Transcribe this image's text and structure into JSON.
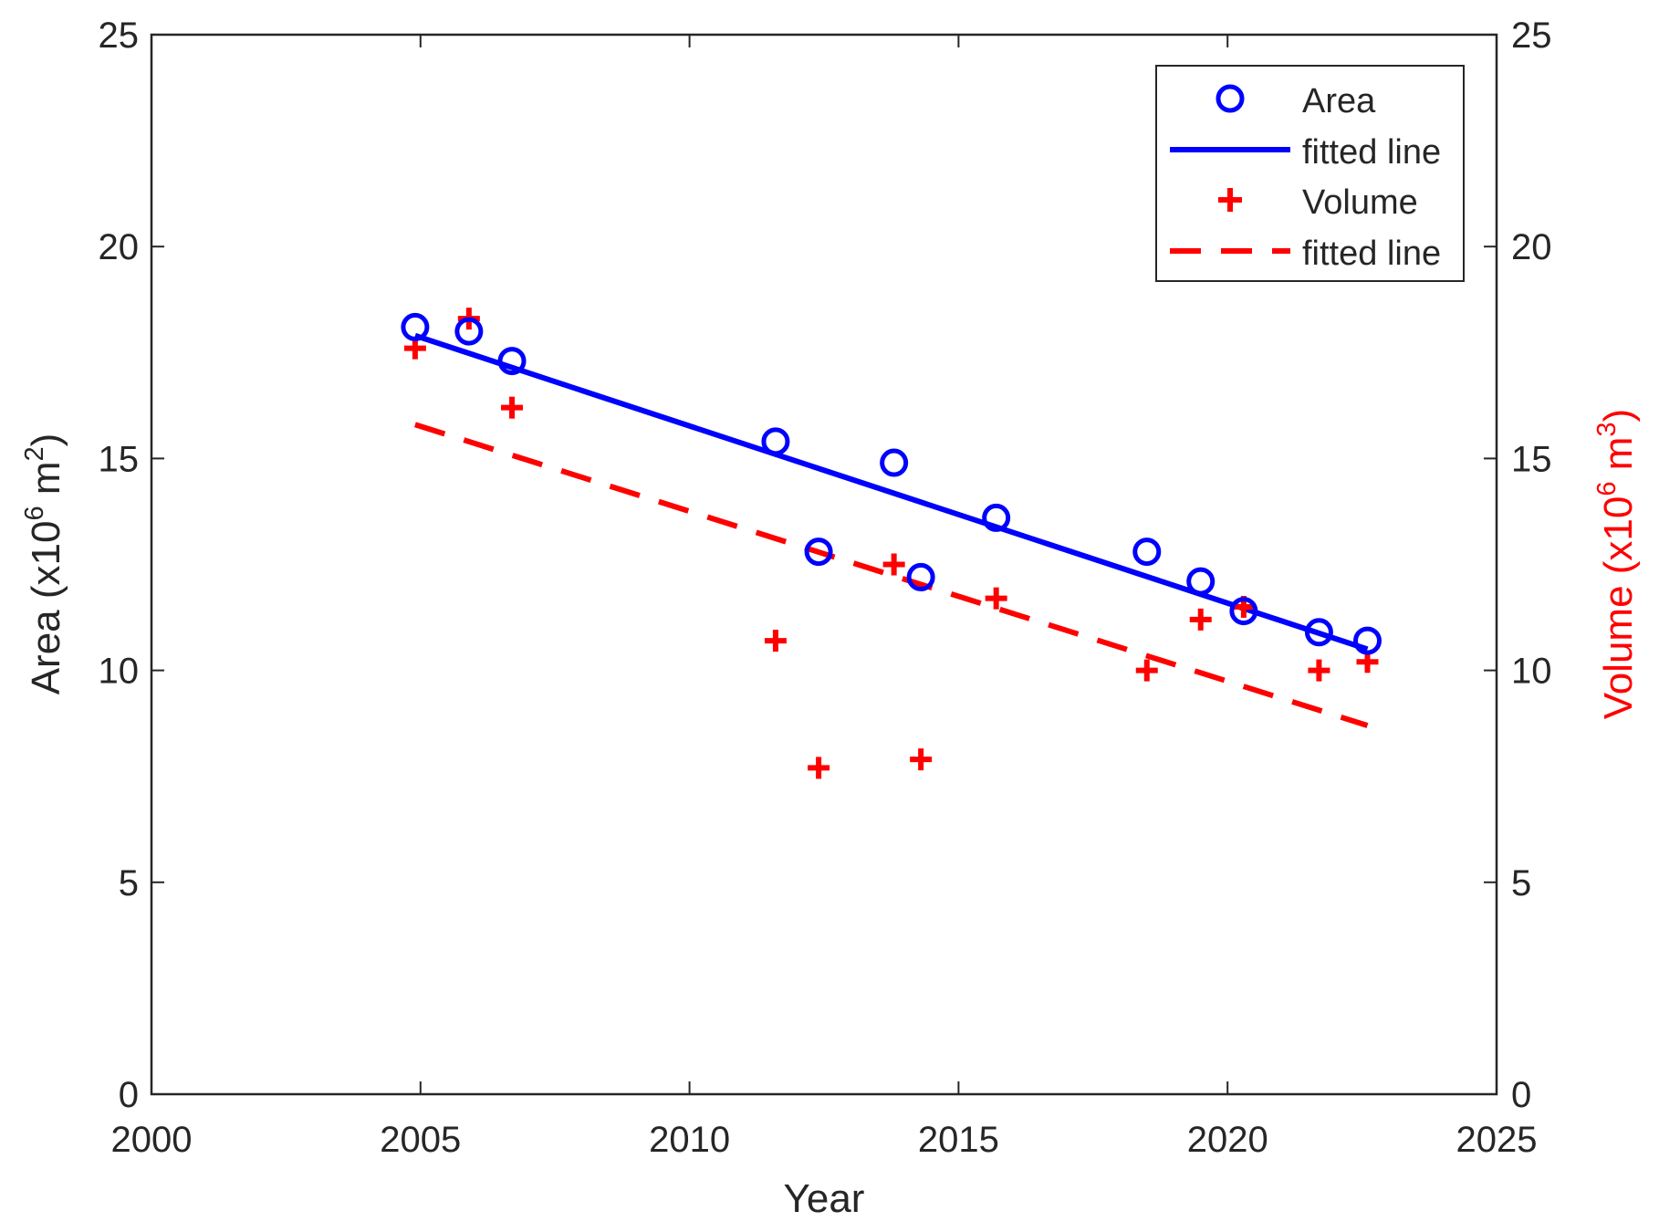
{
  "chart_data": {
    "type": "scatter",
    "xlabel": "Year",
    "ylabel_left": {
      "base": "Area (x10",
      "exp1": "6",
      "mid": " m",
      "exp2": "2",
      "end": ")"
    },
    "ylabel_right": {
      "base": "Volume (x10",
      "exp1": "6",
      "mid": " m",
      "exp2": "3",
      "end": ")"
    },
    "xlim": [
      2000,
      2025
    ],
    "ylim_left": [
      0,
      25
    ],
    "ylim_right": [
      0,
      25
    ],
    "xticks": [
      2000,
      2005,
      2010,
      2015,
      2020,
      2025
    ],
    "yticks": [
      0,
      5,
      10,
      15,
      20,
      25
    ],
    "legend_position": "top-right",
    "colors": {
      "area": "#0000ff",
      "volume": "#ff0000",
      "axis": "#262626"
    },
    "series": [
      {
        "name": "Area",
        "marker": "circle",
        "axis": "left",
        "x": [
          2004.9,
          2005.9,
          2006.7,
          2011.6,
          2012.4,
          2013.8,
          2014.3,
          2015.7,
          2018.5,
          2019.5,
          2020.3,
          2021.7,
          2022.6
        ],
        "y": [
          18.1,
          18.0,
          17.3,
          15.4,
          12.8,
          14.9,
          12.2,
          13.6,
          12.8,
          12.1,
          11.4,
          10.9,
          10.7
        ]
      },
      {
        "name": "fitted line",
        "style": "solid",
        "axis": "left",
        "x": [
          2004.9,
          2022.6
        ],
        "y": [
          17.9,
          10.5
        ]
      },
      {
        "name": "Volume",
        "marker": "plus",
        "axis": "right",
        "x": [
          2004.9,
          2005.9,
          2006.7,
          2011.6,
          2012.4,
          2013.8,
          2014.3,
          2015.7,
          2018.5,
          2019.5,
          2020.3,
          2021.7,
          2022.6
        ],
        "y": [
          17.6,
          18.3,
          16.2,
          10.7,
          7.7,
          12.5,
          7.9,
          11.7,
          10.0,
          11.2,
          11.5,
          10.0,
          10.2
        ]
      },
      {
        "name": "fitted line",
        "style": "dashed",
        "axis": "right",
        "x": [
          2004.9,
          2022.6
        ],
        "y": [
          15.8,
          8.7
        ]
      }
    ]
  }
}
